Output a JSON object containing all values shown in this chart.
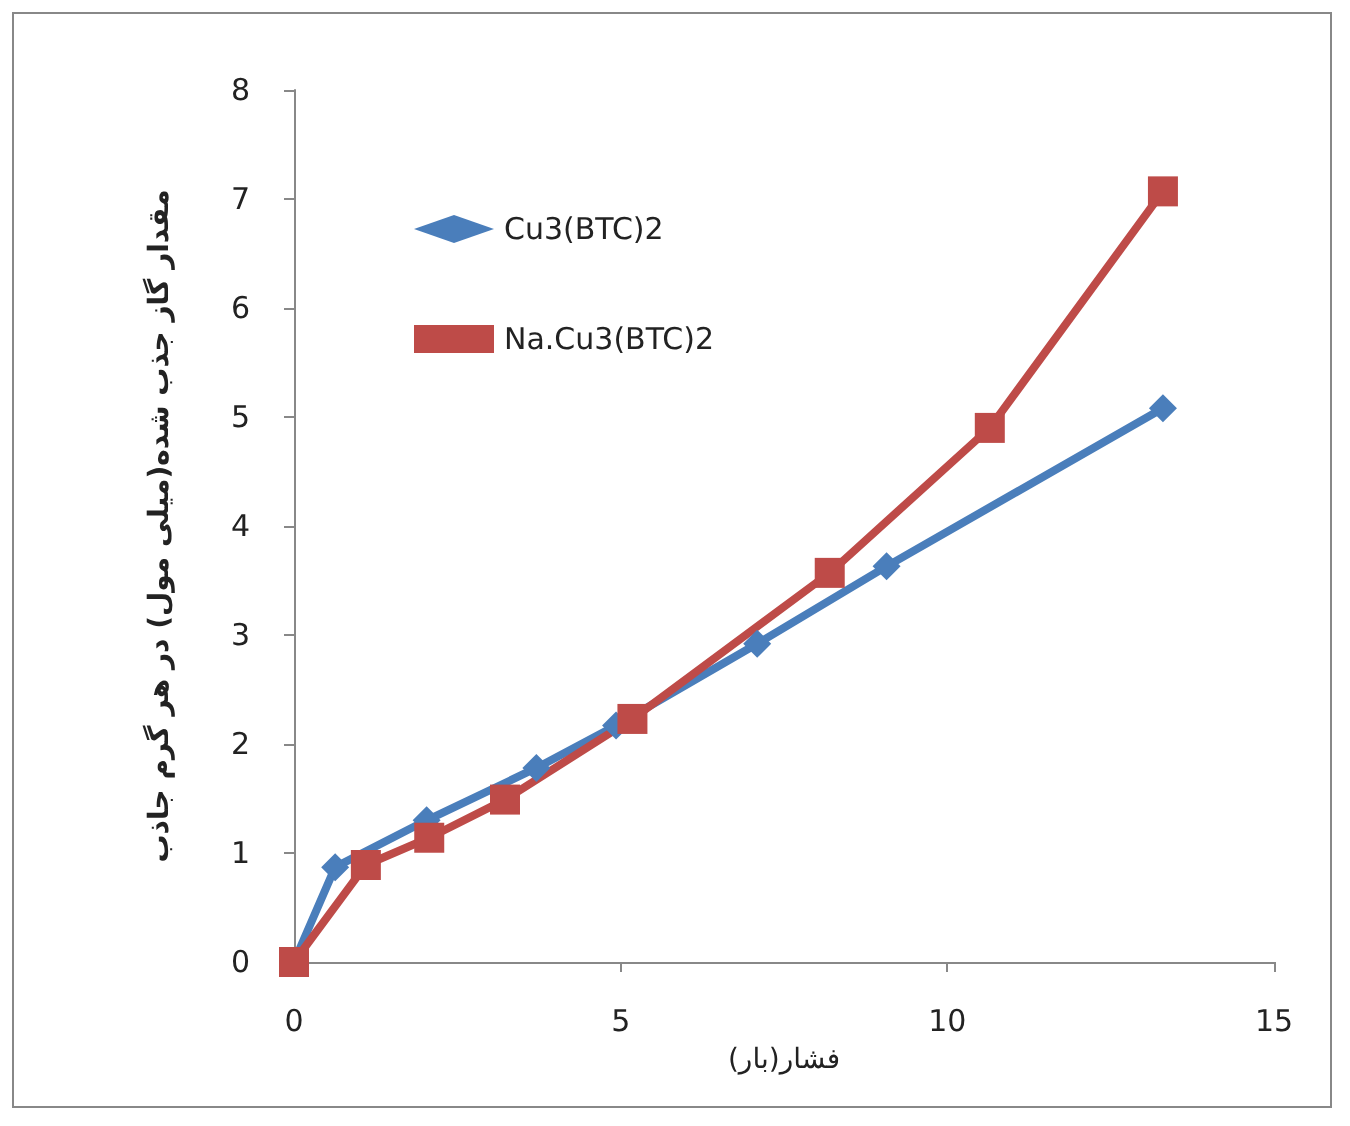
{
  "chart_data": {
    "type": "line",
    "xlabel": "فشار(بار)",
    "ylabel": "مقدار گاز جذب شده(میلی مول) در هر گرم جاذب",
    "series": [
      {
        "name": "Cu3(BTC)2",
        "color": "#4a7ebb",
        "marker": "diamond",
        "x": [
          0,
          0.63,
          2.03,
          3.71,
          4.93,
          7.09,
          9.07,
          13.3
        ],
        "values": [
          0,
          0.87,
          1.3,
          1.78,
          2.17,
          2.92,
          3.63,
          5.08
        ]
      },
      {
        "name": "Na.Cu3(BTC)2",
        "color": "#be4b48",
        "marker": "square",
        "x": [
          0,
          1.1,
          2.07,
          3.23,
          5.18,
          8.2,
          10.65,
          13.3
        ],
        "values": [
          0,
          0.89,
          1.14,
          1.49,
          2.23,
          3.57,
          4.9,
          7.07
        ]
      }
    ],
    "xlim": [
      0,
      15
    ],
    "xticks": [
      0,
      5,
      10,
      15
    ],
    "ylim": [
      0,
      8
    ],
    "yticks": [
      0,
      1,
      2,
      3,
      4,
      5,
      6,
      7,
      8
    ],
    "grid": false,
    "legend": "top left",
    "line_style": "solid"
  }
}
